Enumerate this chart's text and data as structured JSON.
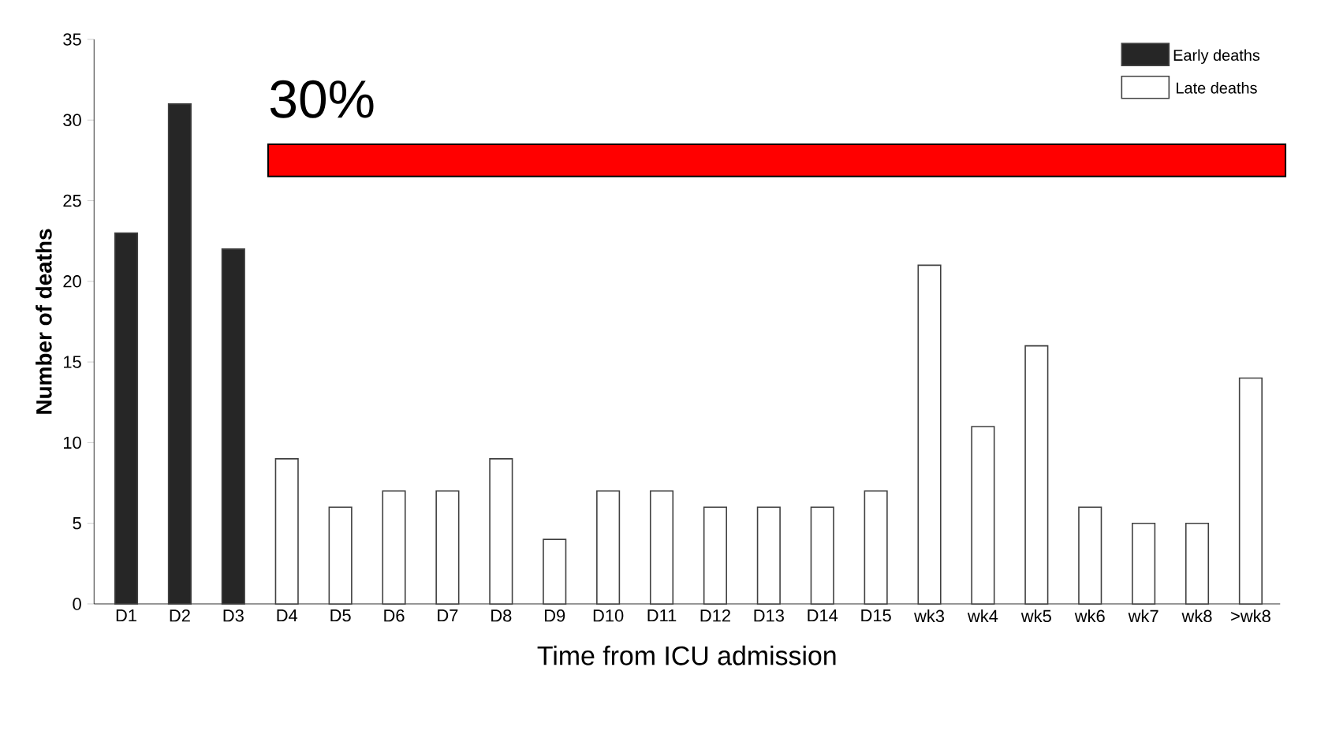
{
  "chart_data": {
    "type": "bar",
    "xlabel": "Time from ICU admission",
    "ylabel": "Number of deaths",
    "categories": [
      "D1",
      "D2",
      "D3",
      "D4",
      "D5",
      "D6",
      "D7",
      "D8",
      "D9",
      "D10",
      "D11",
      "D12",
      "D13",
      "D14",
      "D15",
      "wk3",
      "wk4",
      "wk5",
      "wk6",
      "wk7",
      "wk8",
      ">wk8"
    ],
    "series": [
      {
        "name": "Early deaths",
        "color": "#262626",
        "values": [
          23,
          31,
          22,
          null,
          null,
          null,
          null,
          null,
          null,
          null,
          null,
          null,
          null,
          null,
          null,
          null,
          null,
          null,
          null,
          null,
          null,
          null
        ]
      },
      {
        "name": "Late deaths",
        "color": "#ffffff",
        "values": [
          null,
          null,
          null,
          9,
          6,
          7,
          7,
          9,
          4,
          7,
          7,
          6,
          6,
          6,
          7,
          21,
          11,
          16,
          6,
          5,
          5,
          14
        ]
      }
    ],
    "ylim": [
      0,
      35
    ],
    "yticks": [
      0,
      5,
      10,
      15,
      20,
      25,
      30,
      35
    ],
    "grid": false,
    "legend": "top right",
    "bands": [
      {
        "axis": "y",
        "from": 26.5,
        "to": 28.5,
        "label": "30%",
        "color": "#ff0000"
      }
    ]
  }
}
